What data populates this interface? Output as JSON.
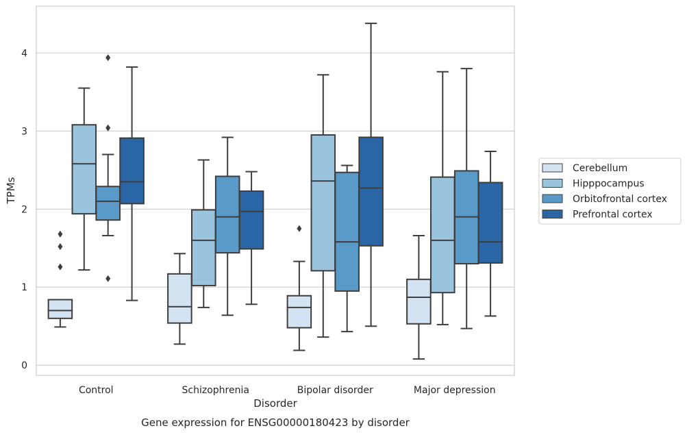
{
  "chart_data": {
    "type": "boxplot",
    "title": "",
    "caption": "Gene expression for ENSG00000180423 by disorder",
    "xlabel": "Disorder",
    "ylabel": "TPMs",
    "categories": [
      "Control",
      "Schizophrenia",
      "Bipolar disorder",
      "Major depression"
    ],
    "ylim": [
      -0.13,
      4.6
    ],
    "yticks": [
      0,
      1,
      2,
      3,
      4
    ],
    "grid": true,
    "legend_position": "right",
    "series": [
      {
        "name": "Cerebellum",
        "color": "#d4e3f2",
        "boxes": [
          {
            "whisker_low": 0.49,
            "q1": 0.6,
            "median": 0.7,
            "q3": 0.84,
            "whisker_high": 0.84,
            "outliers": [
              1.26,
              1.52,
              1.68
            ]
          },
          {
            "whisker_low": 0.27,
            "q1": 0.54,
            "median": 0.75,
            "q3": 1.17,
            "whisker_high": 1.43,
            "outliers": []
          },
          {
            "whisker_low": 0.19,
            "q1": 0.48,
            "median": 0.74,
            "q3": 0.89,
            "whisker_high": 1.33,
            "outliers": [
              1.75
            ]
          },
          {
            "whisker_low": 0.08,
            "q1": 0.53,
            "median": 0.87,
            "q3": 1.1,
            "whisker_high": 1.66,
            "outliers": []
          }
        ]
      },
      {
        "name": "Hipppocampus",
        "color": "#9ac3dd",
        "boxes": [
          {
            "whisker_low": 1.22,
            "q1": 1.94,
            "median": 2.58,
            "q3": 3.08,
            "whisker_high": 3.55,
            "outliers": []
          },
          {
            "whisker_low": 0.74,
            "q1": 1.02,
            "median": 1.6,
            "q3": 1.99,
            "whisker_high": 2.63,
            "outliers": []
          },
          {
            "whisker_low": 0.36,
            "q1": 1.21,
            "median": 2.36,
            "q3": 2.95,
            "whisker_high": 3.72,
            "outliers": []
          },
          {
            "whisker_low": 0.52,
            "q1": 0.93,
            "median": 1.6,
            "q3": 2.41,
            "whisker_high": 3.76,
            "outliers": []
          }
        ]
      },
      {
        "name": "Orbitofrontal cortex",
        "color": "#5a9ac8",
        "boxes": [
          {
            "whisker_low": 1.66,
            "q1": 1.86,
            "median": 2.1,
            "q3": 2.29,
            "whisker_high": 2.7,
            "outliers": [
              1.11,
              3.04,
              3.94
            ]
          },
          {
            "whisker_low": 0.64,
            "q1": 1.44,
            "median": 1.9,
            "q3": 2.42,
            "whisker_high": 2.92,
            "outliers": []
          },
          {
            "whisker_low": 0.43,
            "q1": 0.95,
            "median": 1.58,
            "q3": 2.47,
            "whisker_high": 2.56,
            "outliers": []
          },
          {
            "whisker_low": 0.47,
            "q1": 1.3,
            "median": 1.9,
            "q3": 2.49,
            "whisker_high": 3.8,
            "outliers": []
          }
        ]
      },
      {
        "name": "Prefrontal cortex",
        "color": "#2a66a5",
        "boxes": [
          {
            "whisker_low": 0.83,
            "q1": 2.07,
            "median": 2.35,
            "q3": 2.91,
            "whisker_high": 3.82,
            "outliers": []
          },
          {
            "whisker_low": 0.78,
            "q1": 1.49,
            "median": 1.97,
            "q3": 2.23,
            "whisker_high": 2.48,
            "outliers": []
          },
          {
            "whisker_low": 0.5,
            "q1": 1.53,
            "median": 2.27,
            "q3": 2.92,
            "whisker_high": 4.38,
            "outliers": []
          },
          {
            "whisker_low": 0.63,
            "q1": 1.31,
            "median": 1.58,
            "q3": 2.34,
            "whisker_high": 2.74,
            "outliers": []
          }
        ]
      }
    ]
  }
}
